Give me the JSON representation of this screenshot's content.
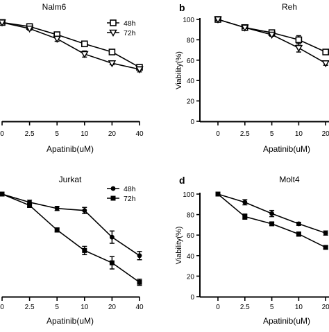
{
  "chart_data": [
    {
      "panel": "",
      "title": "Nalm6",
      "type": "line",
      "xlabel": "Apatinib(uM)",
      "ylabel": "",
      "categories": [
        "0",
        "2.5",
        "5",
        "10",
        "20",
        "40"
      ],
      "ylim": [
        0,
        100
      ],
      "yticks": [],
      "legend_position": "top-right",
      "series": [
        {
          "name": "48h",
          "marker": "square-open",
          "values": [
            97,
            93,
            85,
            76,
            68,
            53
          ],
          "errors": [
            1,
            1.5,
            2,
            2.5,
            2,
            2.5
          ]
        },
        {
          "name": "72h",
          "marker": "triangle-open",
          "values": [
            97,
            91,
            81,
            66,
            57,
            51
          ],
          "errors": [
            1,
            1.5,
            2.5,
            3,
            1.5,
            2.5
          ]
        }
      ]
    },
    {
      "panel": "b",
      "title": "Reh",
      "type": "line",
      "xlabel": "Apatinib(uM)",
      "ylabel": "Viability(%)",
      "categories": [
        "0",
        "2.5",
        "5",
        "10",
        "20"
      ],
      "ylim": [
        0,
        100
      ],
      "yticks": [
        "0",
        "20",
        "40",
        "60",
        "80",
        "100"
      ],
      "legend_position": "top-right",
      "series": [
        {
          "name": "",
          "marker": "square-open",
          "values": [
            100,
            92,
            87,
            80,
            68
          ],
          "errors": [
            1,
            1,
            1.5,
            4,
            2
          ]
        },
        {
          "name": "",
          "marker": "triangle-open",
          "values": [
            100,
            92,
            85,
            72,
            57
          ],
          "errors": [
            1,
            1,
            1.5,
            4,
            2
          ]
        }
      ]
    },
    {
      "panel": "",
      "title": "Jurkat",
      "type": "line",
      "xlabel": "Apatinib(uM)",
      "ylabel": "",
      "categories": [
        "0",
        "2.5",
        "5",
        "10",
        "20",
        "40"
      ],
      "ylim": [
        0,
        100
      ],
      "yticks": [],
      "legend_position": "top-right",
      "series": [
        {
          "name": "48h",
          "marker": "circle-filled",
          "values": [
            100,
            92,
            86,
            84,
            58,
            40
          ],
          "errors": [
            1,
            2,
            2,
            3,
            6,
            4
          ]
        },
        {
          "name": "72h",
          "marker": "square-filled",
          "values": [
            100,
            89,
            65,
            45,
            33,
            14
          ],
          "errors": [
            1,
            2,
            2,
            4,
            6,
            3
          ]
        }
      ]
    },
    {
      "panel": "d",
      "title": "Molt4",
      "type": "line",
      "xlabel": "Apatinib(uM)",
      "ylabel": "Viability(%)",
      "categories": [
        "0",
        "2.5",
        "5",
        "10",
        "20"
      ],
      "ylim": [
        0,
        100
      ],
      "yticks": [
        "0",
        "20",
        "40",
        "60",
        "80",
        "100"
      ],
      "legend_position": "top-right",
      "series": [
        {
          "name": "",
          "marker": "circle-filled",
          "values": [
            100,
            92,
            81,
            71,
            62
          ],
          "errors": [
            1,
            2.5,
            3,
            1.5,
            2
          ]
        },
        {
          "name": "",
          "marker": "square-filled",
          "values": [
            100,
            78,
            71,
            61,
            48
          ],
          "errors": [
            1,
            2.5,
            1.5,
            2,
            1.5
          ]
        }
      ]
    }
  ]
}
